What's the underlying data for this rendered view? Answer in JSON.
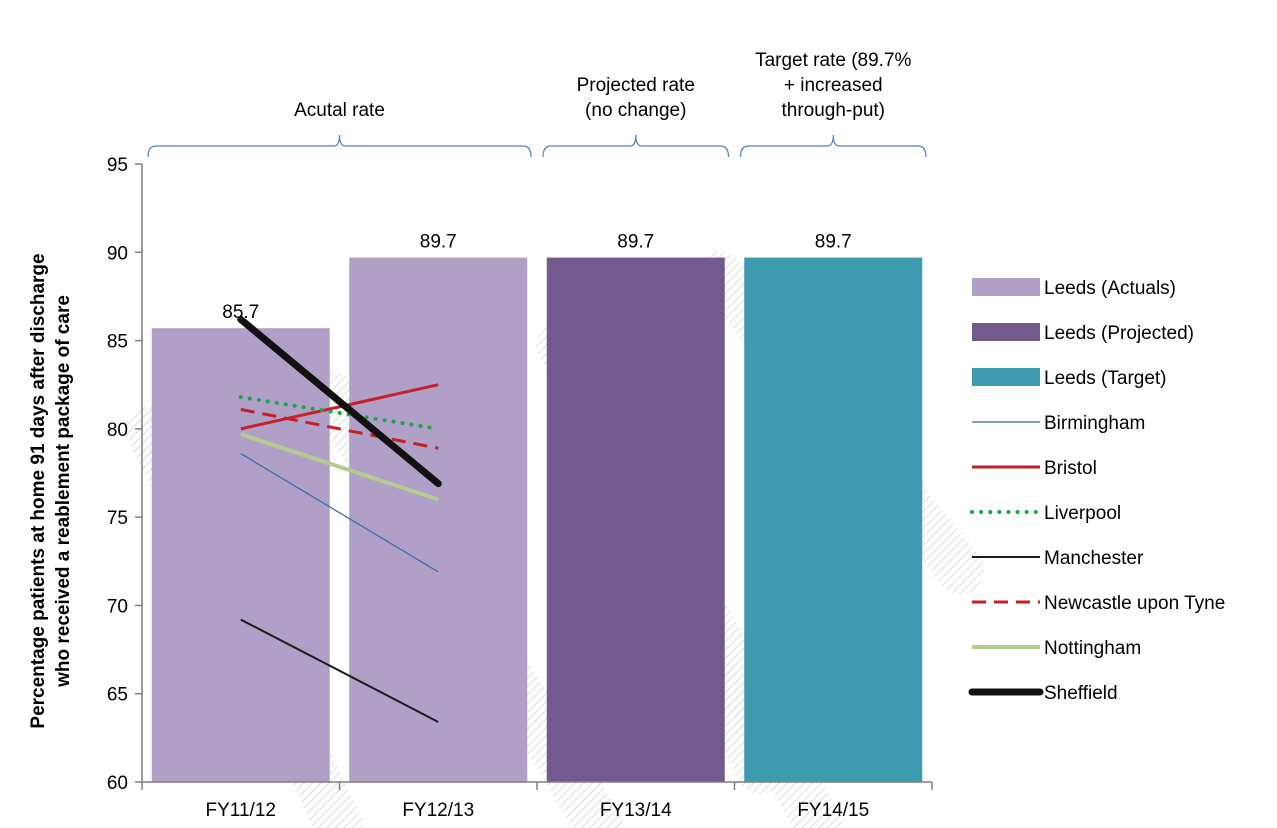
{
  "chart_data": {
    "type": "bar",
    "categories": [
      "FY11/12",
      "FY12/13",
      "FY13/14",
      "FY14/15"
    ],
    "ylabel_lines": [
      "Percentage patients at home 91 days after discharge",
      "who received a reablement package of care"
    ],
    "ylim": [
      60,
      95
    ],
    "yticks": [
      60,
      65,
      70,
      75,
      80,
      85,
      90,
      95
    ],
    "grid": false,
    "legend_position": "right",
    "bars": [
      {
        "category": "FY11/12",
        "value": 85.7,
        "label": "85.7",
        "series": "Leeds (Actuals)"
      },
      {
        "category": "FY12/13",
        "value": 89.7,
        "label": "89.7",
        "series": "Leeds (Actuals)"
      },
      {
        "category": "FY13/14",
        "value": 89.7,
        "label": "89.7",
        "series": "Leeds (Projected)"
      },
      {
        "category": "FY14/15",
        "value": 89.7,
        "label": "89.7",
        "series": "Leeds (Target)"
      }
    ],
    "bar_series": [
      {
        "name": "Leeds (Actuals)",
        "color": "#b0a0c8"
      },
      {
        "name": "Leeds (Projected)",
        "color": "#735a8e"
      },
      {
        "name": "Leeds (Target)",
        "color": "#3f9ab0"
      }
    ],
    "line_series": [
      {
        "name": "Birmingham",
        "x": [
          "FY11/12",
          "FY12/13"
        ],
        "values": [
          78.6,
          71.9
        ],
        "color": "#2e6aa8",
        "style": "thin"
      },
      {
        "name": "Bristol",
        "x": [
          "FY11/12",
          "FY12/13"
        ],
        "values": [
          80.0,
          82.5
        ],
        "color": "#c42026",
        "style": "solid"
      },
      {
        "name": "Liverpool",
        "x": [
          "FY11/12",
          "FY12/13"
        ],
        "values": [
          81.8,
          80.0
        ],
        "color": "#1fa34a",
        "style": "dotted"
      },
      {
        "name": "Manchester",
        "x": [
          "FY11/12",
          "FY12/13"
        ],
        "values": [
          69.2,
          63.4
        ],
        "color": "#1a1a1a",
        "style": "thin-dark"
      },
      {
        "name": "Newcastle upon Tyne",
        "x": [
          "FY11/12",
          "FY12/13"
        ],
        "values": [
          81.1,
          78.9
        ],
        "color": "#c42026",
        "style": "dashed"
      },
      {
        "name": "Nottingham",
        "x": [
          "FY11/12",
          "FY12/13"
        ],
        "values": [
          79.7,
          76.0
        ],
        "color": "#b5cc8e",
        "style": "solid-light"
      },
      {
        "name": "Sheffield",
        "x": [
          "FY11/12",
          "FY12/13"
        ],
        "values": [
          86.2,
          76.9
        ],
        "color": "#111111",
        "style": "thick"
      }
    ],
    "group_annotations": [
      {
        "text_lines": [
          "Acutal rate"
        ],
        "from": "FY11/12",
        "to": "FY12/13"
      },
      {
        "text_lines": [
          "Projected rate",
          "(no change)"
        ],
        "from": "FY13/14",
        "to": "FY13/14"
      },
      {
        "text_lines": [
          "Target rate (89.7%",
          "+ increased",
          "through-put)"
        ],
        "from": "FY14/15",
        "to": "FY14/15"
      }
    ]
  }
}
